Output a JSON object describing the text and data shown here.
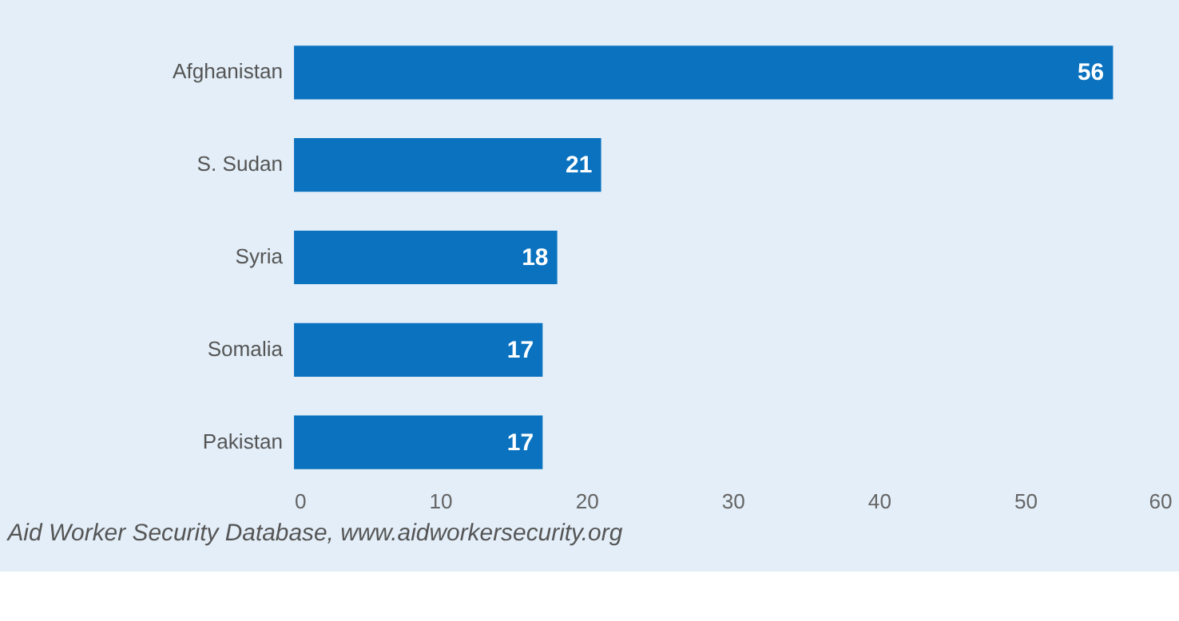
{
  "chart_data": {
    "type": "bar",
    "orientation": "horizontal",
    "categories": [
      "Afghanistan",
      "S. Sudan",
      "Syria",
      "Somalia",
      "Pakistan"
    ],
    "values": [
      56,
      21,
      18,
      17,
      17
    ],
    "color": "#0a72bf",
    "xlim": [
      0,
      60
    ],
    "xticks": [
      0,
      10,
      20,
      30,
      40,
      50,
      60
    ],
    "grid": false,
    "data_labels": true,
    "annotations": [
      "Aid Worker Security Database, www.aidworkersecurity.org"
    ]
  }
}
